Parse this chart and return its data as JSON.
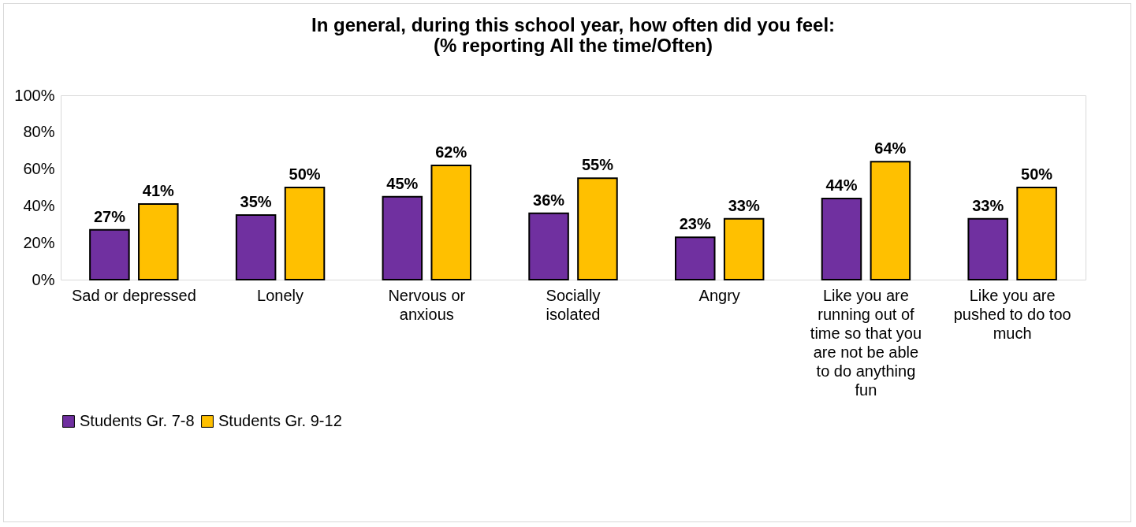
{
  "chart_data": {
    "type": "bar",
    "title": [
      "In general, during this school year, how often did you feel:",
      "(% reporting All the time/Often)"
    ],
    "categories": [
      "Sad or depressed",
      "Lonely",
      "Nervous or anxious",
      "Socially isolated",
      "Angry",
      "Like you are running out of time so that you are not be able to do anything fun",
      "Like you are pushed to do too much"
    ],
    "series": [
      {
        "name": "Students Gr. 7-8",
        "color": "#7030a0",
        "values": [
          27,
          35,
          45,
          36,
          23,
          44,
          33
        ],
        "value_labels": [
          "27%",
          "35%",
          "45%",
          "36%",
          "23%",
          "44%",
          "33%"
        ]
      },
      {
        "name": "Students Gr. 9-12",
        "color": "#ffc000",
        "values": [
          41,
          50,
          62,
          55,
          33,
          64,
          50
        ],
        "value_labels": [
          "41%",
          "50%",
          "62%",
          "55%",
          "33%",
          "64%",
          "50%"
        ]
      }
    ],
    "ylim": [
      0,
      100
    ],
    "yticks": [
      {
        "value": 0,
        "label": "0%"
      },
      {
        "value": 20,
        "label": "20%"
      },
      {
        "value": 40,
        "label": "40%"
      },
      {
        "value": 60,
        "label": "60%"
      },
      {
        "value": 80,
        "label": "80%"
      },
      {
        "value": 100,
        "label": "100%"
      }
    ],
    "grid": false,
    "legend": "bottom"
  }
}
